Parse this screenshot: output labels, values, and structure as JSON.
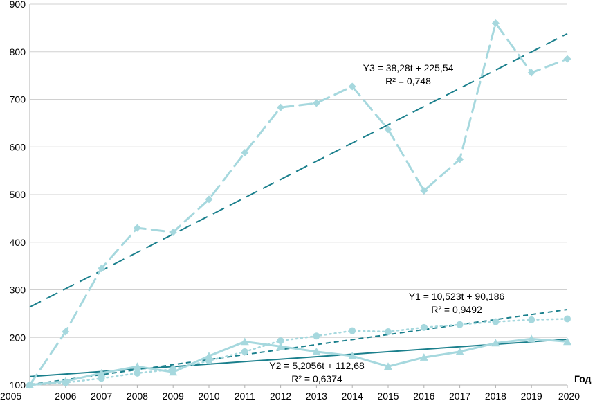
{
  "chart_data": {
    "type": "line",
    "xlabel": "Год",
    "ylabel": "",
    "ylim": [
      100,
      900
    ],
    "y_ticks": [
      100,
      200,
      300,
      400,
      500,
      600,
      700,
      800,
      900
    ],
    "x": [
      "2005",
      "2006",
      "2007",
      "2008",
      "2009",
      "2010",
      "2011",
      "2012",
      "2013",
      "2014",
      "2015",
      "2016",
      "2017",
      "2018",
      "2019",
      "2020"
    ],
    "grid": "horizontal",
    "series": [
      {
        "key": "y3",
        "values": [
          100,
          212,
          345,
          430,
          421,
          490,
          588,
          683,
          692,
          727,
          637,
          508,
          574,
          860,
          756,
          785
        ],
        "color": "#a6d8de",
        "marker": "diamond",
        "dash": "long-dash"
      },
      {
        "key": "y1",
        "values": [
          100,
          105,
          114,
          125,
          133,
          151,
          170,
          193,
          203,
          214,
          212,
          221,
          227,
          233,
          237,
          239
        ],
        "color": "#a6d8de",
        "marker": "circle",
        "dash": "dotted"
      },
      {
        "key": "y2",
        "values": [
          100,
          108,
          125,
          139,
          127,
          161,
          191,
          181,
          170,
          161,
          139,
          158,
          170,
          188,
          197,
          191
        ],
        "color": "#a6d8de",
        "marker": "triangle",
        "dash": "solid"
      }
    ],
    "trendlines": [
      {
        "key": "y3",
        "slope": 38.28,
        "intercept": 225.54,
        "equation": "Y3 = 38,28t + 225,54",
        "r2": "R² = 0,748",
        "color": "#1a7f8c",
        "dash": "long-dash"
      },
      {
        "key": "y1",
        "slope": 10.523,
        "intercept": 90.186,
        "equation": "Y1 = 10,523t + 90,186",
        "r2": "R² = 0,9492",
        "color": "#1a7f8c",
        "dash": "short-dash"
      },
      {
        "key": "y2",
        "slope": 5.2056,
        "intercept": 112.68,
        "equation": "Y2 = 5,2056t + 112,68",
        "r2": "R² = 0,6374",
        "color": "#1a7f8c",
        "dash": "solid"
      }
    ]
  }
}
